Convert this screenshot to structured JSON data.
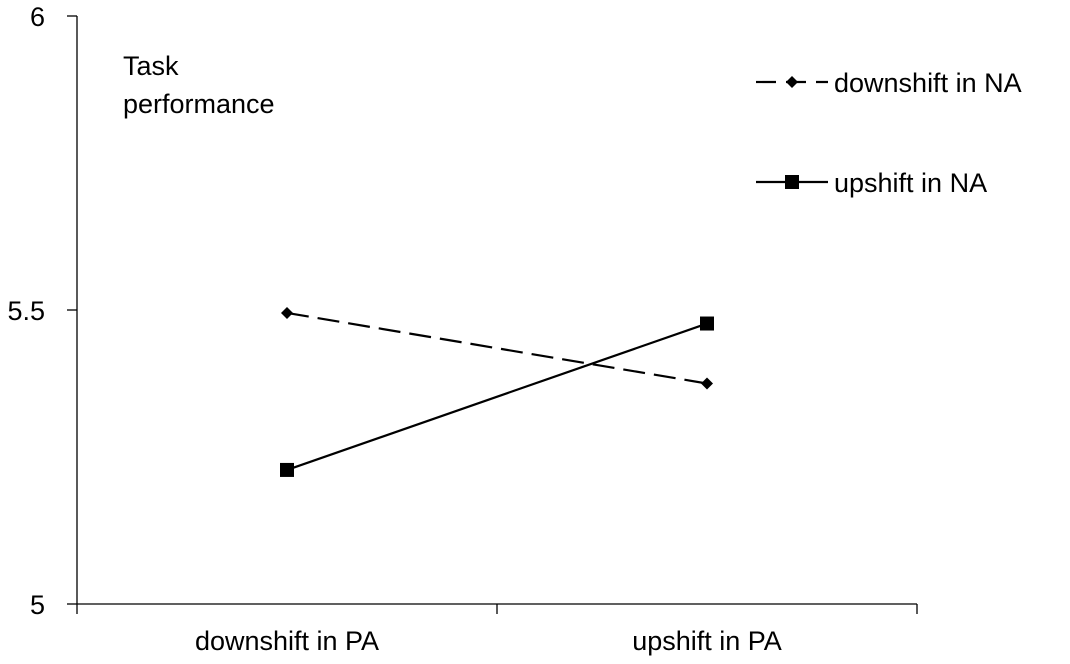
{
  "chart_data": {
    "type": "line",
    "title": "",
    "ylabel": "Task performance",
    "ylabel_lines": [
      "Task",
      "performance"
    ],
    "xlabel": "",
    "categories": [
      "downshift in PA",
      "upshift in PA"
    ],
    "ylim": [
      5,
      6
    ],
    "yticks": [
      5,
      5.5,
      6
    ],
    "ytick_labels": [
      "5",
      "5.5",
      "6"
    ],
    "grid": false,
    "legend_position": "top-right",
    "series": [
      {
        "name": "downshift in NA",
        "values": [
          5.495,
          5.375
        ],
        "line_style": "dashed",
        "marker": "diamond",
        "color": "#000000"
      },
      {
        "name": "upshift in NA",
        "values": [
          5.228,
          5.477
        ],
        "line_style": "solid",
        "marker": "square",
        "color": "#000000"
      }
    ]
  }
}
